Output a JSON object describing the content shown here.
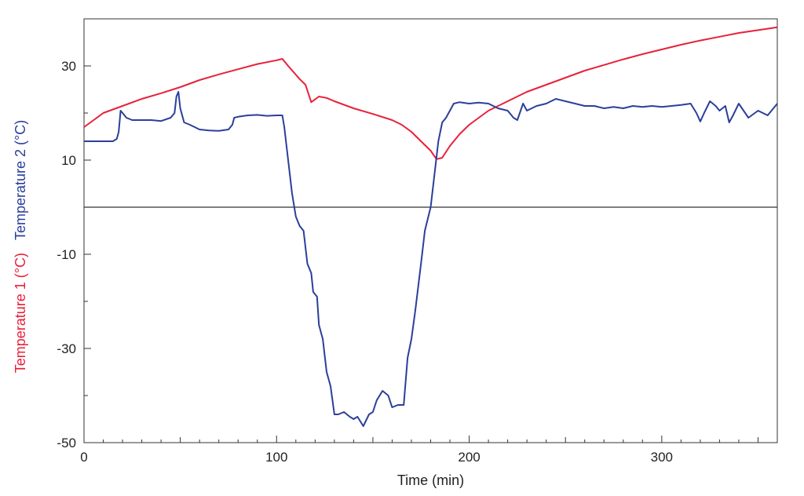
{
  "chart_data": {
    "type": "line",
    "title": "",
    "xlabel": "Time (min)",
    "ylabels": [
      {
        "text": "Temperature 1 (°C)",
        "color": "#e8213a"
      },
      {
        "text": "Temperature 2 (°C)",
        "color": "#2b3f9b"
      }
    ],
    "xlim": [
      0,
      360
    ],
    "ylim": [
      -50,
      40
    ],
    "xticks": [
      0,
      100,
      200,
      300
    ],
    "yticks": [
      -50,
      -30,
      -10,
      10,
      30
    ],
    "zero_line": true,
    "grid": false,
    "series": [
      {
        "color": "#e8213a",
        "points": [
          [
            0,
            17
          ],
          [
            5,
            18.5
          ],
          [
            10,
            20
          ],
          [
            20,
            21.5
          ],
          [
            30,
            23
          ],
          [
            40,
            24.2
          ],
          [
            50,
            25.5
          ],
          [
            60,
            27
          ],
          [
            70,
            28.2
          ],
          [
            80,
            29.3
          ],
          [
            90,
            30.4
          ],
          [
            100,
            31.2
          ],
          [
            103,
            31.5
          ],
          [
            106,
            30
          ],
          [
            112,
            27.2
          ],
          [
            115,
            26
          ],
          [
            118,
            22.3
          ],
          [
            122,
            23.5
          ],
          [
            126,
            23.2
          ],
          [
            130,
            22.5
          ],
          [
            140,
            21
          ],
          [
            150,
            19.8
          ],
          [
            160,
            18.5
          ],
          [
            165,
            17.5
          ],
          [
            170,
            16
          ],
          [
            175,
            14
          ],
          [
            180,
            12
          ],
          [
            183,
            10.2
          ],
          [
            186,
            10.5
          ],
          [
            190,
            13
          ],
          [
            195,
            15.5
          ],
          [
            200,
            17.5
          ],
          [
            205,
            19
          ],
          [
            210,
            20.5
          ],
          [
            220,
            22.5
          ],
          [
            230,
            24.5
          ],
          [
            240,
            26
          ],
          [
            250,
            27.5
          ],
          [
            260,
            29
          ],
          [
            270,
            30.2
          ],
          [
            280,
            31.4
          ],
          [
            290,
            32.5
          ],
          [
            300,
            33.5
          ],
          [
            310,
            34.5
          ],
          [
            320,
            35.4
          ],
          [
            330,
            36.2
          ],
          [
            340,
            37
          ],
          [
            350,
            37.6
          ],
          [
            360,
            38.2
          ]
        ]
      },
      {
        "color": "#2b3f9b",
        "points": [
          [
            0,
            14
          ],
          [
            5,
            14
          ],
          [
            10,
            14
          ],
          [
            15,
            14
          ],
          [
            17,
            14.5
          ],
          [
            18,
            16
          ],
          [
            19,
            20.5
          ],
          [
            20,
            20
          ],
          [
            22,
            19
          ],
          [
            25,
            18.5
          ],
          [
            30,
            18.5
          ],
          [
            35,
            18.5
          ],
          [
            40,
            18.3
          ],
          [
            45,
            19
          ],
          [
            47,
            20
          ],
          [
            48,
            23.5
          ],
          [
            49,
            24.5
          ],
          [
            50,
            21
          ],
          [
            52,
            18
          ],
          [
            55,
            17.5
          ],
          [
            60,
            16.5
          ],
          [
            65,
            16.3
          ],
          [
            70,
            16.2
          ],
          [
            75,
            16.5
          ],
          [
            77,
            17.5
          ],
          [
            78,
            19
          ],
          [
            80,
            19.2
          ],
          [
            85,
            19.5
          ],
          [
            90,
            19.6
          ],
          [
            95,
            19.4
          ],
          [
            100,
            19.5
          ],
          [
            103,
            19.5
          ],
          [
            104,
            17
          ],
          [
            106,
            10
          ],
          [
            108,
            3
          ],
          [
            110,
            -2
          ],
          [
            112,
            -4
          ],
          [
            114,
            -5
          ],
          [
            116,
            -12
          ],
          [
            118,
            -14
          ],
          [
            119,
            -18
          ],
          [
            121,
            -19
          ],
          [
            122,
            -25
          ],
          [
            124,
            -28
          ],
          [
            126,
            -35
          ],
          [
            128,
            -38
          ],
          [
            130,
            -44
          ],
          [
            132,
            -44
          ],
          [
            135,
            -43.5
          ],
          [
            138,
            -44.5
          ],
          [
            140,
            -45
          ],
          [
            142,
            -44.5
          ],
          [
            145,
            -46.5
          ],
          [
            148,
            -44
          ],
          [
            150,
            -43.5
          ],
          [
            152,
            -41
          ],
          [
            155,
            -39
          ],
          [
            158,
            -40
          ],
          [
            160,
            -42.5
          ],
          [
            163,
            -42
          ],
          [
            166,
            -42
          ],
          [
            168,
            -32
          ],
          [
            170,
            -28
          ],
          [
            172,
            -22
          ],
          [
            175,
            -12
          ],
          [
            177,
            -5
          ],
          [
            180,
            0
          ],
          [
            182,
            7
          ],
          [
            184,
            14
          ],
          [
            186,
            18
          ],
          [
            188,
            19
          ],
          [
            190,
            20.5
          ],
          [
            192,
            22
          ],
          [
            195,
            22.3
          ],
          [
            200,
            22
          ],
          [
            205,
            22.2
          ],
          [
            210,
            22
          ],
          [
            215,
            21
          ],
          [
            220,
            20.5
          ],
          [
            223,
            19
          ],
          [
            225,
            18.5
          ],
          [
            228,
            22
          ],
          [
            230,
            20.5
          ],
          [
            235,
            21.5
          ],
          [
            240,
            22
          ],
          [
            245,
            23
          ],
          [
            250,
            22.5
          ],
          [
            255,
            22
          ],
          [
            260,
            21.5
          ],
          [
            265,
            21.5
          ],
          [
            270,
            21
          ],
          [
            275,
            21.3
          ],
          [
            280,
            21
          ],
          [
            285,
            21.5
          ],
          [
            290,
            21.3
          ],
          [
            295,
            21.5
          ],
          [
            300,
            21.3
          ],
          [
            305,
            21.5
          ],
          [
            310,
            21.7
          ],
          [
            315,
            22
          ],
          [
            318,
            20
          ],
          [
            320,
            18.2
          ],
          [
            322,
            20
          ],
          [
            325,
            22.5
          ],
          [
            328,
            21.5
          ],
          [
            330,
            20.5
          ],
          [
            333,
            21.5
          ],
          [
            335,
            18
          ],
          [
            337,
            19.5
          ],
          [
            340,
            22
          ],
          [
            345,
            19
          ],
          [
            350,
            20.5
          ],
          [
            355,
            19.5
          ],
          [
            360,
            22
          ]
        ]
      }
    ]
  }
}
